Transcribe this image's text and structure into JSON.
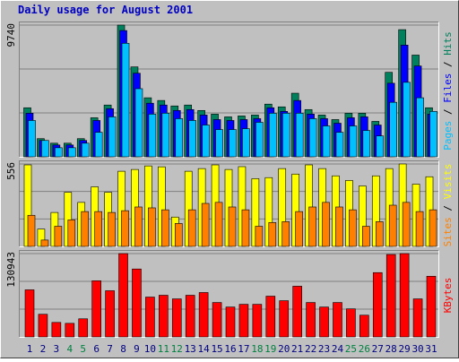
{
  "title": "Daily usage for August 2001",
  "legend_separator": " / ",
  "chart_data": [
    {
      "type": "bar",
      "ylim": [
        0,
        9740
      ],
      "yticks": [
        9740
      ],
      "series": [
        {
          "name": "Hits",
          "color": "#00805c",
          "values": [
            3627,
            1343,
            1008,
            1008,
            1343,
            2888,
            3829,
            9740,
            6650,
            4366,
            4165,
            3762,
            3829,
            3426,
            3157,
            2955,
            3023,
            3090,
            3896,
            3694,
            4702,
            3493,
            3090,
            2754,
            3224,
            3224,
            2620,
            6247,
            9404,
            7523,
            3627
          ]
        },
        {
          "name": "Files",
          "color": "#0000ff",
          "values": [
            3224,
            1209,
            873,
            873,
            1209,
            2687,
            3560,
            9337,
            6180,
            3963,
            3829,
            3426,
            3493,
            3090,
            2754,
            2687,
            2754,
            2821,
            3627,
            3359,
            4165,
            3157,
            2821,
            2485,
            2888,
            2955,
            2351,
            5441,
            8262,
            6717,
            3157
          ]
        },
        {
          "name": "Pages",
          "color": "#00c0ff",
          "values": [
            2687,
            1209,
            672,
            672,
            1008,
            1814,
            2955,
            8396,
            5038,
            3157,
            3224,
            2821,
            2687,
            2351,
            2015,
            2015,
            2082,
            2552,
            3224,
            3224,
            3224,
            2821,
            2284,
            1814,
            2284,
            1948,
            1545,
            4030,
            5508,
            4366,
            3359
          ]
        }
      ]
    },
    {
      "type": "bar",
      "ylim": [
        0,
        556
      ],
      "yticks": [
        556
      ],
      "series": [
        {
          "name": "Visits",
          "color": "#ffff00",
          "values": [
            550,
            117,
            229,
            365,
            297,
            402,
            365,
            507,
            519,
            543,
            537,
            198,
            507,
            525,
            550,
            519,
            538,
            457,
            464,
            525,
            488,
            550,
            525,
            476,
            445,
            408,
            476,
            525,
            556,
            420,
            470
          ]
        },
        {
          "name": "Sites",
          "color": "#ff8000",
          "values": [
            210,
            43,
            136,
            179,
            235,
            235,
            229,
            241,
            266,
            260,
            247,
            155,
            247,
            290,
            297,
            266,
            247,
            136,
            161,
            167,
            235,
            266,
            297,
            266,
            247,
            136,
            167,
            278,
            297,
            235,
            247
          ]
        }
      ]
    },
    {
      "type": "bar",
      "ylim": [
        0,
        130943
      ],
      "yticks": [
        130943
      ],
      "categories": [
        "1",
        "2",
        "3",
        "4",
        "5",
        "6",
        "7",
        "8",
        "9",
        "10",
        "11",
        "12",
        "13",
        "14",
        "15",
        "16",
        "17",
        "18",
        "19",
        "20",
        "21",
        "22",
        "23",
        "24",
        "25",
        "26",
        "27",
        "28",
        "29",
        "30",
        "31"
      ],
      "category_colors": [
        "#000080",
        "#000080",
        "#000080",
        "#008040",
        "#008040",
        "#000080",
        "#000080",
        "#000080",
        "#000080",
        "#000080",
        "#008040",
        "#008040",
        "#000080",
        "#000080",
        "#000080",
        "#000080",
        "#000080",
        "#008040",
        "#008040",
        "#000080",
        "#000080",
        "#000080",
        "#000080",
        "#000080",
        "#008040",
        "#008040",
        "#000080",
        "#000080",
        "#000080",
        "#000080",
        "#000080"
      ],
      "series": [
        {
          "name": "KBytes",
          "color": "#ff0000",
          "values": [
            74000,
            35575,
            22770,
            21345,
            28460,
            88230,
            72575,
            130943,
            106725,
            62610,
            65460,
            59770,
            65460,
            69730,
            54075,
            46960,
            51230,
            51230,
            64035,
            56920,
            79690,
            54075,
            46960,
            54075,
            44115,
            34150,
            101035,
            129495,
            130943,
            59770,
            95340
          ]
        }
      ]
    }
  ]
}
